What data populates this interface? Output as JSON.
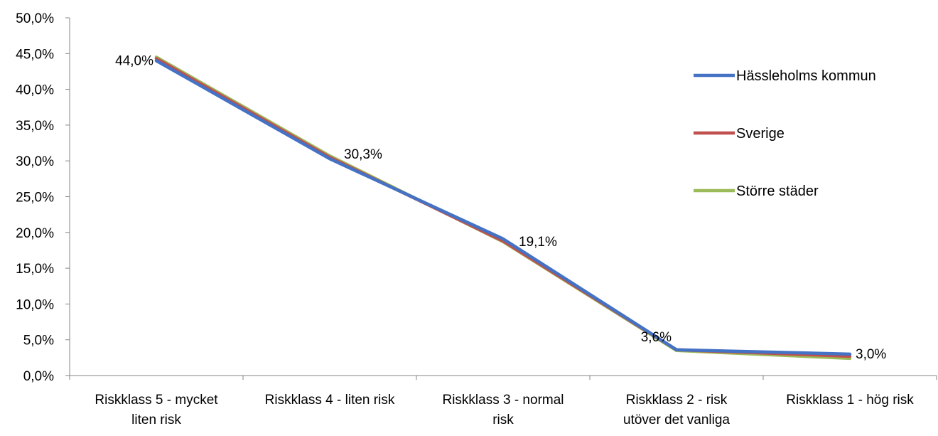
{
  "chart_data": {
    "type": "line",
    "title": "",
    "xlabel": "",
    "ylabel": "",
    "ylim": [
      0,
      50
    ],
    "y_tick_step": 5,
    "y_tick_labels": [
      "0,0%",
      "5,0%",
      "10,0%",
      "15,0%",
      "20,0%",
      "25,0%",
      "30,0%",
      "35,0%",
      "40,0%",
      "45,0%",
      "50,0%"
    ],
    "grid": false,
    "legend_position": "right",
    "categories": [
      [
        "Riskklass 5 - mycket",
        "liten risk"
      ],
      [
        "Riskklass 4 - liten risk"
      ],
      [
        "Riskklass 3 - normal",
        "risk"
      ],
      [
        "Riskklass 2 - risk",
        "utöver det vanliga"
      ],
      [
        "Riskklass 1 - hög risk"
      ]
    ],
    "series": [
      {
        "name": "Hässleholms kommun",
        "color": "#4472C4",
        "values": [
          44.0,
          30.3,
          19.1,
          3.6,
          3.0
        ]
      },
      {
        "name": "Sverige",
        "color": "#C0504D",
        "values": [
          44.3,
          30.5,
          18.8,
          3.6,
          2.7
        ]
      },
      {
        "name": "Större städer",
        "color": "#9BBB59",
        "values": [
          44.5,
          30.7,
          18.7,
          3.5,
          2.4
        ]
      }
    ],
    "data_labels": [
      "44,0%",
      "30,3%",
      "19,1%",
      "3,6%",
      "3,0%"
    ],
    "data_label_series": "Hässleholms kommun"
  }
}
